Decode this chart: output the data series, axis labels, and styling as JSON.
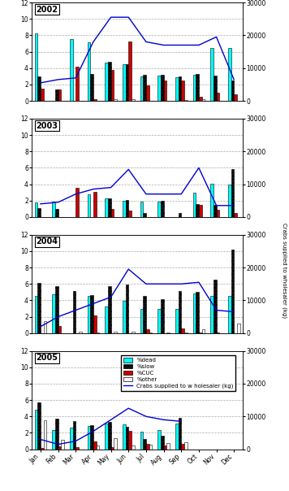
{
  "months": [
    "Jan",
    "Feb",
    "Mar",
    "Apr",
    "May",
    "Jun",
    "Jul",
    "Aug",
    "Sep",
    "Oct",
    "Nov",
    "Dec"
  ],
  "years": [
    "2002",
    "2003",
    "2004",
    "2005"
  ],
  "bar_width": 0.17,
  "colors": {
    "dead": "#00FFFF",
    "slow": "#111111",
    "CUC": "#CC0000",
    "other": "#FFFFFF"
  },
  "bar_edgecolor": "#000000",
  "slow_hatch": "....",
  "line_color": "#0000CC",
  "ylim_bar": [
    0,
    12
  ],
  "ylim_line": [
    0,
    30000
  ],
  "yticks_bar": [
    0,
    2,
    4,
    6,
    8,
    10,
    12
  ],
  "yticks_line": [
    0,
    10000,
    20000,
    30000
  ],
  "data": {
    "2002": {
      "dead": [
        8.2,
        0.0,
        7.5,
        7.1,
        4.7,
        4.5,
        3.0,
        3.1,
        2.9,
        3.2,
        6.5,
        6.5
      ],
      "slow": [
        3.0,
        1.4,
        0.0,
        3.3,
        4.8,
        4.5,
        3.2,
        3.2,
        3.0,
        3.3,
        3.1,
        2.5
      ],
      "CUC": [
        1.5,
        1.4,
        4.2,
        0.2,
        3.8,
        7.2,
        1.9,
        2.5,
        2.5,
        0.5,
        1.0,
        0.8
      ],
      "other": [
        0.0,
        0.0,
        0.0,
        0.0,
        0.2,
        0.2,
        0.0,
        0.0,
        0.1,
        0.2,
        0.0,
        0.0
      ],
      "line": [
        5500,
        6500,
        7000,
        18000,
        25500,
        25500,
        18000,
        17000,
        17000,
        17000,
        19500,
        6500
      ]
    },
    "2003": {
      "dead": [
        1.8,
        1.9,
        0.0,
        2.8,
        2.3,
        2.0,
        1.9,
        1.9,
        0.0,
        3.0,
        4.1,
        4.0
      ],
      "slow": [
        1.1,
        1.0,
        0.0,
        0.0,
        2.3,
        2.1,
        0.5,
        2.0,
        0.5,
        1.6,
        1.5,
        5.8
      ],
      "CUC": [
        0.0,
        0.0,
        3.6,
        3.1,
        1.0,
        0.8,
        0.0,
        0.0,
        0.0,
        1.5,
        0.9,
        0.5
      ],
      "other": [
        0.0,
        0.0,
        0.0,
        0.0,
        0.0,
        0.0,
        0.0,
        0.0,
        0.0,
        0.0,
        0.0,
        0.0
      ],
      "line": [
        4000,
        4500,
        7000,
        8500,
        9000,
        14500,
        7000,
        7000,
        7000,
        15000,
        3500,
        3500
      ]
    },
    "2004": {
      "dead": [
        4.5,
        4.7,
        0.0,
        4.5,
        3.3,
        3.9,
        3.0,
        3.0,
        3.0,
        4.8,
        4.5,
        4.5
      ],
      "slow": [
        6.1,
        5.7,
        5.1,
        4.6,
        5.7,
        5.9,
        4.5,
        4.1,
        5.1,
        5.0,
        6.5,
        10.2
      ],
      "CUC": [
        0.0,
        0.9,
        0.0,
        2.2,
        0.0,
        0.0,
        0.5,
        0.0,
        0.6,
        0.1,
        0.1,
        0.0
      ],
      "other": [
        1.5,
        0.0,
        0.2,
        0.1,
        0.2,
        0.2,
        0.1,
        0.1,
        0.1,
        0.5,
        0.0,
        1.2
      ],
      "line": [
        2000,
        5000,
        7000,
        9000,
        11000,
        19500,
        15000,
        15000,
        15000,
        15500,
        7000,
        6500
      ]
    },
    "2005": {
      "dead": [
        4.8,
        2.3,
        2.6,
        2.8,
        3.1,
        3.0,
        2.1,
        2.3,
        3.1,
        0.0,
        0.0,
        0.0
      ],
      "slow": [
        5.7,
        3.7,
        3.4,
        2.9,
        3.3,
        2.7,
        1.3,
        1.7,
        3.8,
        0.0,
        0.0,
        0.0
      ],
      "CUC": [
        0.2,
        0.4,
        0.3,
        1.0,
        0.3,
        2.2,
        0.7,
        0.5,
        0.7,
        0.0,
        0.0,
        0.0
      ],
      "other": [
        3.5,
        1.2,
        0.0,
        0.5,
        1.4,
        0.5,
        0.6,
        0.8,
        0.9,
        0.0,
        0.0,
        0.0
      ],
      "line": [
        3000,
        1500,
        2500,
        5500,
        9000,
        12500,
        10000,
        9000,
        8500,
        0,
        0,
        0
      ],
      "line_months": [
        0,
        1,
        2,
        3,
        4,
        5,
        6,
        7,
        8
      ]
    }
  },
  "legend_labels": {
    "dead": "%dead",
    "slow": "%slow",
    "CUC": "%CUC",
    "other": "%other",
    "line": "Crabs supplied to w holesaler (kg)"
  },
  "right_ylabel": "Crabs supplied to wholesaler (kg)"
}
